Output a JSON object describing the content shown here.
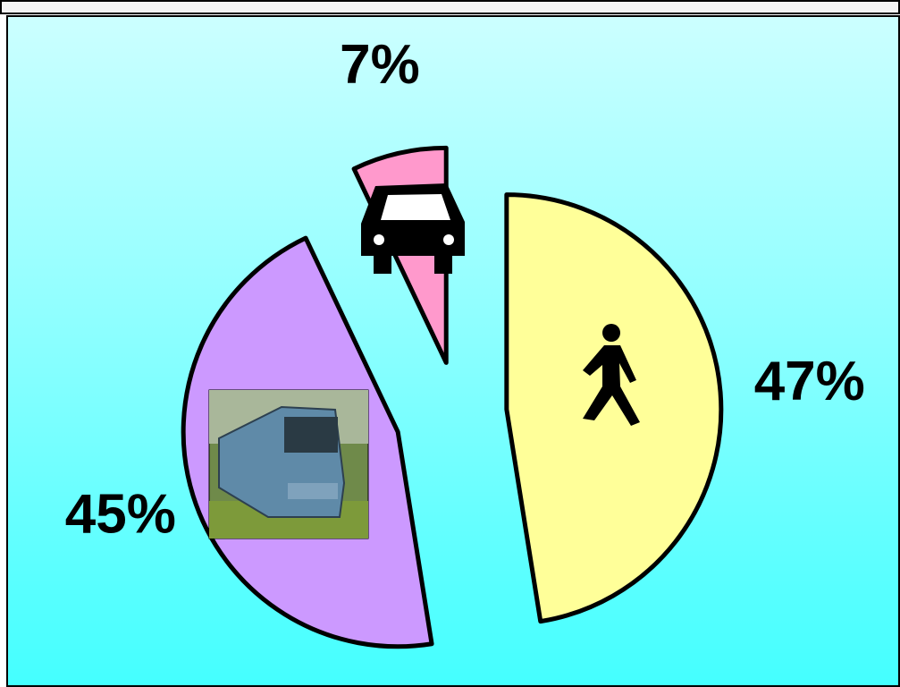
{
  "chart_data": {
    "type": "pie",
    "categories": [
      null,
      null,
      null
    ],
    "values": [
      47,
      45,
      7
    ],
    "value_labels": [
      "47%",
      "45%",
      "7%"
    ],
    "colors": [
      "#ffff99",
      "#cc99ff",
      "#ff99cc"
    ]
  }
}
